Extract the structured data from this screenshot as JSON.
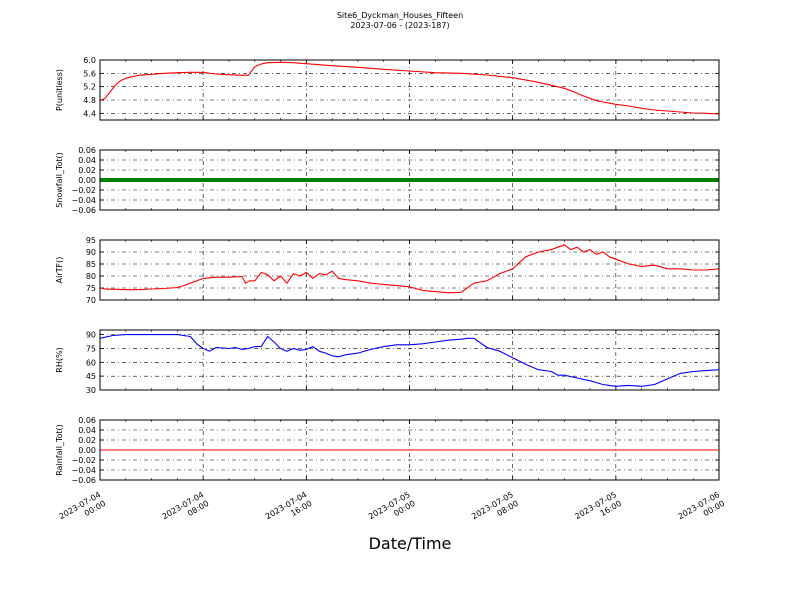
{
  "title": "Site6_Dyckman_Houses_Fifteen",
  "subtitle": "2023-07-06 - (2023-187)",
  "xlabel": "Date/Time",
  "chart_data": [
    {
      "type": "line",
      "ylabel": "P(unitless)",
      "ylim": [
        4.2,
        6.0
      ],
      "yticks": [
        "6.0",
        "5.6",
        "5.2",
        "4.8",
        "4.4"
      ],
      "ytick_values": [
        6.0,
        5.6,
        5.2,
        4.8,
        4.4
      ],
      "color": "#ff0000",
      "xlim": [
        0,
        48
      ],
      "grid": true,
      "series": [
        {
          "x": [
            0,
            0.4,
            0.8,
            1.2,
            1.6,
            2,
            2.5,
            3,
            4,
            5,
            6,
            7,
            8,
            8.5,
            9,
            10,
            11,
            11.5,
            12,
            12.5,
            13,
            14,
            15,
            16,
            18,
            20,
            22,
            24,
            26,
            28,
            30,
            32,
            34,
            36,
            36.5,
            37,
            37.5,
            38,
            38.5,
            39,
            40,
            41,
            42,
            43,
            44,
            45,
            46,
            47,
            48
          ],
          "y": [
            4.78,
            4.85,
            5.05,
            5.25,
            5.38,
            5.45,
            5.5,
            5.54,
            5.57,
            5.6,
            5.62,
            5.63,
            5.63,
            5.6,
            5.58,
            5.56,
            5.54,
            5.54,
            5.8,
            5.88,
            5.92,
            5.93,
            5.92,
            5.89,
            5.83,
            5.78,
            5.72,
            5.67,
            5.62,
            5.6,
            5.55,
            5.47,
            5.33,
            5.15,
            5.08,
            5.0,
            4.92,
            4.85,
            4.78,
            4.74,
            4.67,
            4.62,
            4.55,
            4.5,
            4.47,
            4.44,
            4.41,
            4.4,
            4.38
          ]
        }
      ]
    },
    {
      "type": "line",
      "ylabel": "Snowfall_Tot()",
      "ylim": [
        -0.06,
        0.06
      ],
      "yticks": [
        "0.06",
        "0.04",
        "0.02",
        "0.00",
        "−0.02",
        "−0.04",
        "−0.06"
      ],
      "ytick_values": [
        0.06,
        0.04,
        0.02,
        0.0,
        -0.02,
        -0.04,
        -0.06
      ],
      "color": "#008000",
      "xlim": [
        0,
        48
      ],
      "grid": true,
      "series": [
        {
          "x": [
            0,
            48
          ],
          "y": [
            0,
            0
          ]
        }
      ]
    },
    {
      "type": "line",
      "ylabel": "AirTF()",
      "ylim": [
        70,
        95
      ],
      "yticks": [
        "95",
        "90",
        "85",
        "80",
        "75",
        "70"
      ],
      "ytick_values": [
        95,
        90,
        85,
        80,
        75,
        70
      ],
      "color": "#ff0000",
      "xlim": [
        0,
        48
      ],
      "grid": true,
      "series": [
        {
          "x": [
            0,
            0.5,
            1,
            2,
            3,
            4,
            5,
            6,
            6.5,
            7,
            7.5,
            8,
            9,
            10,
            11,
            11.3,
            11.6,
            12,
            12.5,
            13,
            13.5,
            14,
            14.5,
            15,
            15.5,
            16,
            16.5,
            17,
            17.5,
            18,
            18.5,
            19,
            20,
            21,
            22,
            23,
            24,
            25,
            26,
            27,
            28,
            29,
            29.5,
            30,
            31,
            32,
            33,
            34,
            35,
            35.5,
            36,
            36.5,
            37,
            37.5,
            38,
            38.5,
            39,
            39.5,
            40,
            41,
            42,
            43,
            44,
            45,
            46,
            47,
            48
          ],
          "y": [
            75,
            74.5,
            74.5,
            74.3,
            74.3,
            74.6,
            74.8,
            75.2,
            76,
            77,
            78,
            79,
            79.5,
            79.5,
            79.8,
            77,
            78,
            78,
            81.5,
            80.5,
            78,
            80,
            77,
            81,
            80,
            81.5,
            79,
            81,
            80.5,
            82,
            79,
            78.5,
            78,
            77,
            76.5,
            76,
            75.5,
            74,
            73.5,
            73,
            73.2,
            77,
            77.5,
            78,
            81,
            83,
            88,
            90,
            91,
            92,
            93,
            91,
            92,
            90,
            91,
            89,
            90,
            88,
            87,
            85,
            84,
            84.5,
            83,
            83,
            82.5,
            82.5,
            83
          ]
        }
      ]
    },
    {
      "type": "line",
      "ylabel": "RH(%)",
      "ylim": [
        30,
        95
      ],
      "yticks": [
        "90",
        "75",
        "60",
        "45",
        "30"
      ],
      "ytick_values": [
        90,
        75,
        60,
        45,
        30
      ],
      "color": "#0000ff",
      "xlim": [
        0,
        48
      ],
      "grid": true,
      "series": [
        {
          "x": [
            0,
            1,
            2,
            3,
            4,
            5,
            6,
            7,
            7.5,
            8,
            8.5,
            9,
            10,
            10.5,
            11,
            11.5,
            12,
            12.5,
            13,
            13.5,
            14,
            14.5,
            15,
            15.5,
            16,
            16.5,
            17,
            17.5,
            18,
            18.5,
            19,
            20,
            21,
            22,
            23,
            24,
            25,
            26,
            27,
            28,
            28.5,
            29,
            30,
            31,
            32,
            33,
            34,
            35,
            35.5,
            36,
            37,
            38,
            38.5,
            39,
            39.5,
            40,
            41,
            42,
            43,
            44,
            45,
            46,
            47,
            48
          ],
          "y": [
            86,
            89,
            90,
            90,
            90,
            90,
            90,
            88,
            80,
            75,
            72,
            76,
            75,
            76,
            74,
            75,
            77,
            77,
            88,
            82,
            75,
            72,
            75,
            73,
            74,
            77,
            72,
            70,
            67,
            66,
            68,
            70,
            74,
            77,
            79,
            79,
            80,
            82,
            84,
            85,
            86,
            86,
            76,
            72,
            65,
            58,
            52,
            50,
            46,
            46,
            43,
            40,
            38,
            36,
            35,
            34,
            35,
            34,
            36,
            42,
            48,
            50,
            51,
            52
          ]
        }
      ]
    },
    {
      "type": "line",
      "ylabel": "Rainfall_Tot()",
      "ylim": [
        -0.06,
        0.06
      ],
      "yticks": [
        "0.06",
        "0.04",
        "0.02",
        "0.00",
        "−0.02",
        "−0.04",
        "−0.06"
      ],
      "ytick_values": [
        0.06,
        0.04,
        0.02,
        0.0,
        -0.02,
        -0.04,
        -0.06
      ],
      "color": "#ff0000",
      "xlim": [
        0,
        48
      ],
      "grid": true,
      "series": [
        {
          "x": [
            0,
            48
          ],
          "y": [
            0,
            0
          ]
        }
      ]
    }
  ],
  "xticks": [
    {
      "v": 0,
      "l1": "2023-07-04",
      "l2": "00:00"
    },
    {
      "v": 8,
      "l1": "2023-07-04",
      "l2": "08:00"
    },
    {
      "v": 16,
      "l1": "2023-07-04",
      "l2": "16:00"
    },
    {
      "v": 24,
      "l1": "2023-07-05",
      "l2": "00:00"
    },
    {
      "v": 32,
      "l1": "2023-07-05",
      "l2": "08:00"
    },
    {
      "v": 40,
      "l1": "2023-07-05",
      "l2": "16:00"
    },
    {
      "v": 48,
      "l1": "2023-07-06",
      "l2": "00:00"
    }
  ]
}
